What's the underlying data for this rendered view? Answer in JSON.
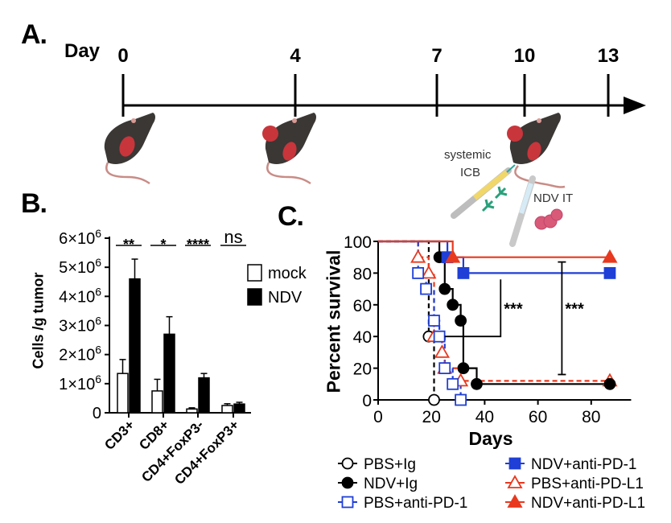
{
  "panels": {
    "a": "A.",
    "b": "B.",
    "c": "C."
  },
  "timeline": {
    "axis_label": "Day",
    "days": [
      "0",
      "4",
      "7",
      "10",
      "13"
    ],
    "annotations": {
      "systemic": "systemic",
      "icb": "ICB",
      "ndv_it": "NDV IT"
    }
  },
  "chart_data": [
    {
      "type": "bar",
      "panel": "B",
      "title": "",
      "ylabel": "Cells /g tumor",
      "xlabel": "",
      "ylim": [
        0,
        6000000
      ],
      "yticks": [
        0,
        1000000,
        2000000,
        3000000,
        4000000,
        5000000,
        6000000
      ],
      "ytick_labels": [
        "0",
        "1×10",
        "2×10",
        "3×10",
        "4×10",
        "5×10",
        "6×10"
      ],
      "ytick_exponent": "6",
      "categories": [
        "CD3+",
        "CD8+",
        "CD4+FoxP3-",
        "CD4+FoxP3+"
      ],
      "series": [
        {
          "name": "mock",
          "color": "#ffffff",
          "values": [
            1350000,
            750000,
            130000,
            250000
          ],
          "errors": [
            480000,
            400000,
            40000,
            60000
          ]
        },
        {
          "name": "NDV",
          "color": "#000000",
          "values": [
            4600000,
            2700000,
            1200000,
            300000
          ],
          "errors": [
            680000,
            600000,
            150000,
            60000
          ]
        }
      ],
      "significance": [
        "**",
        "*",
        "****",
        "ns"
      ],
      "legend": [
        "mock",
        "NDV"
      ],
      "legend_position": "right"
    },
    {
      "type": "line",
      "subtype": "kaplan-meier",
      "panel": "C",
      "title": "",
      "xlabel": "Days",
      "ylabel": "Percent survival",
      "xlim": [
        0,
        95
      ],
      "ylim": [
        0,
        100
      ],
      "xticks": [
        0,
        20,
        40,
        60,
        80
      ],
      "yticks": [
        0,
        20,
        40,
        60,
        80,
        100
      ],
      "series": [
        {
          "name": "PBS+Ig",
          "color": "#000000",
          "dashed": true,
          "marker": "circle-open",
          "steps": [
            [
              0,
              100
            ],
            [
              19,
              100
            ],
            [
              19,
              40
            ],
            [
              21,
              40
            ],
            [
              21,
              0
            ]
          ],
          "markers": [
            [
              19,
              40
            ],
            [
              21,
              0
            ]
          ]
        },
        {
          "name": "NDV+Ig",
          "color": "#000000",
          "dashed": false,
          "marker": "circle-filled",
          "steps": [
            [
              0,
              100
            ],
            [
              23,
              100
            ],
            [
              23,
              90
            ],
            [
              25,
              90
            ],
            [
              25,
              70
            ],
            [
              28,
              70
            ],
            [
              28,
              60
            ],
            [
              31,
              60
            ],
            [
              31,
              50
            ],
            [
              32,
              50
            ],
            [
              32,
              20
            ],
            [
              37,
              20
            ],
            [
              37,
              10
            ],
            [
              87,
              10
            ]
          ],
          "markers": [
            [
              23,
              90
            ],
            [
              25,
              70
            ],
            [
              28,
              60
            ],
            [
              31,
              50
            ],
            [
              32,
              20
            ],
            [
              37,
              10
            ],
            [
              87,
              10
            ]
          ]
        },
        {
          "name": "PBS+anti-PD-1",
          "color": "#1f3fd6",
          "dashed": true,
          "marker": "square-open",
          "steps": [
            [
              0,
              100
            ],
            [
              15,
              100
            ],
            [
              15,
              80
            ],
            [
              18,
              80
            ],
            [
              18,
              70
            ],
            [
              21,
              70
            ],
            [
              21,
              50
            ],
            [
              23,
              50
            ],
            [
              23,
              40
            ],
            [
              25,
              40
            ],
            [
              25,
              20
            ],
            [
              28,
              20
            ],
            [
              28,
              10
            ],
            [
              31,
              10
            ],
            [
              31,
              0
            ]
          ],
          "markers": [
            [
              15,
              80
            ],
            [
              18,
              70
            ],
            [
              21,
              50
            ],
            [
              23,
              40
            ],
            [
              25,
              20
            ],
            [
              28,
              10
            ],
            [
              31,
              0
            ]
          ]
        },
        {
          "name": "NDV+anti-PD-1",
          "color": "#1f3fd6",
          "dashed": false,
          "marker": "square-filled",
          "steps": [
            [
              0,
              100
            ],
            [
              26,
              100
            ],
            [
              26,
              90
            ],
            [
              32,
              90
            ],
            [
              32,
              80
            ],
            [
              87,
              80
            ]
          ],
          "markers": [
            [
              26,
              90
            ],
            [
              32,
              80
            ],
            [
              87,
              80
            ]
          ]
        },
        {
          "name": "PBS+anti-PD-L1",
          "color": "#e8391f",
          "dashed": true,
          "marker": "triangle-open",
          "steps": [
            [
              0,
              100
            ],
            [
              15,
              100
            ],
            [
              15,
              90
            ],
            [
              19,
              90
            ],
            [
              19,
              80
            ],
            [
              21,
              80
            ],
            [
              21,
              40
            ],
            [
              24,
              40
            ],
            [
              24,
              30
            ],
            [
              25,
              30
            ],
            [
              25,
              20
            ],
            [
              31,
              20
            ],
            [
              31,
              12
            ],
            [
              87,
              12
            ]
          ],
          "markers": [
            [
              15,
              90
            ],
            [
              19,
              80
            ],
            [
              21,
              40
            ],
            [
              24,
              30
            ],
            [
              25,
              20
            ],
            [
              31,
              12
            ],
            [
              87,
              12
            ]
          ]
        },
        {
          "name": "NDV+anti-PD-L1",
          "color": "#e8391f",
          "dashed": false,
          "marker": "triangle-filled",
          "steps": [
            [
              0,
              100
            ],
            [
              28,
              100
            ],
            [
              28,
              90
            ],
            [
              87,
              90
            ]
          ],
          "markers": [
            [
              28,
              90
            ],
            [
              87,
              90
            ]
          ]
        }
      ],
      "significance": [
        {
          "label": "***",
          "x": 46,
          "from": 40,
          "to": 76
        },
        {
          "label": "***",
          "x": 69,
          "from": 16,
          "to": 87
        }
      ],
      "legend_position": "bottom"
    }
  ]
}
